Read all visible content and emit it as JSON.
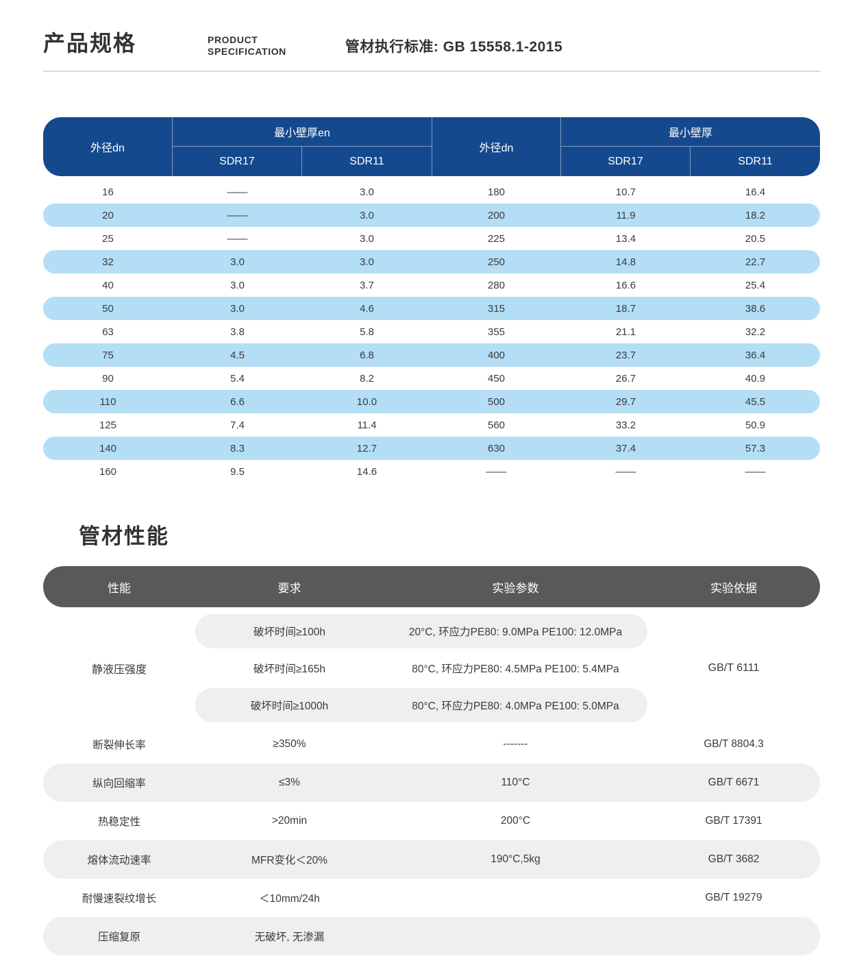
{
  "colors": {
    "header_blue": "#15498e",
    "row_blue": "#b3def5",
    "header_gray": "#59585a",
    "pill_gray": "#efefef"
  },
  "doc_header": {
    "title_cn": "产品规格",
    "title_en_line1": "PRODUCT",
    "title_en_line2": "SPECIFICATION",
    "standard": "管材执行标准: GB 15558.1-2015"
  },
  "spec_table": {
    "header": {
      "od_left": "外径dn",
      "group_left": "最小壁厚en",
      "sdr17_left": "SDR17",
      "sdr11_left": "SDR11",
      "od_right": "外径dn",
      "group_right": "最小壁厚",
      "sdr17_right": "SDR17",
      "sdr11_right": "SDR11"
    },
    "rows": [
      [
        "16",
        "——",
        "3.0",
        "180",
        "10.7",
        "16.4"
      ],
      [
        "20",
        "——",
        "3.0",
        "200",
        "11.9",
        "18.2"
      ],
      [
        "25",
        "——",
        "3.0",
        "225",
        "13.4",
        "20.5"
      ],
      [
        "32",
        "3.0",
        "3.0",
        "250",
        "14.8",
        "22.7"
      ],
      [
        "40",
        "3.0",
        "3.7",
        "280",
        "16.6",
        "25.4"
      ],
      [
        "50",
        "3.0",
        "4.6",
        "315",
        "18.7",
        "38.6"
      ],
      [
        "63",
        "3.8",
        "5.8",
        "355",
        "21.1",
        "32.2"
      ],
      [
        "75",
        "4.5",
        "6.8",
        "400",
        "23.7",
        "36.4"
      ],
      [
        "90",
        "5.4",
        "8.2",
        "450",
        "26.7",
        "40.9"
      ],
      [
        "110",
        "6.6",
        "10.0",
        "500",
        "29.7",
        "45.5"
      ],
      [
        "125",
        "7.4",
        "11.4",
        "560",
        "33.2",
        "50.9"
      ],
      [
        "140",
        "8.3",
        "12.7",
        "630",
        "37.4",
        "57.3"
      ],
      [
        "160",
        "9.5",
        "14.6",
        "——",
        "——",
        "——"
      ]
    ]
  },
  "performance": {
    "title": "管材性能",
    "header": {
      "property": "性能",
      "requirement": "要求",
      "parameter": "实验参数",
      "standard": "实验依据"
    },
    "hydro": {
      "property": "静液压强度",
      "standard": "GB/T 6111",
      "subrows": [
        {
          "req": "破坏时间≥100h",
          "param": "20°C, 环应力PE80: 9.0MPa PE100: 12.0MPa",
          "pill": true
        },
        {
          "req": "破坏时间≥165h",
          "param": "80°C, 环应力PE80: 4.5MPa PE100: 5.4MPa",
          "pill": false
        },
        {
          "req": "破坏时间≥1000h",
          "param": "80°C, 环应力PE80: 4.0MPa PE100: 5.0MPa",
          "pill": true
        }
      ]
    },
    "rows": [
      {
        "property": "断裂伸长率",
        "req": "≥350%",
        "param": "-------",
        "standard": "GB/T 8804.3",
        "pill": false
      },
      {
        "property": "纵向回缩率",
        "req": "≤3%",
        "param": "110°C",
        "standard": "GB/T 6671",
        "pill": true
      },
      {
        "property": "热稳定性",
        "req": ">20min",
        "param": "200°C",
        "standard": "GB/T 17391",
        "pill": false
      },
      {
        "property": "熔体流动速率",
        "req": "MFR变化＜20%",
        "param": "190°C,5kg",
        "standard": "GB/T 3682",
        "pill": true
      },
      {
        "property": "耐慢速裂纹增长",
        "req": "＜10mm/24h",
        "param": "",
        "standard": "GB/T 19279",
        "pill": false
      },
      {
        "property": "压缩复原",
        "req": "无破坏, 无渗漏",
        "param": "",
        "standard": "",
        "pill": true
      }
    ]
  }
}
